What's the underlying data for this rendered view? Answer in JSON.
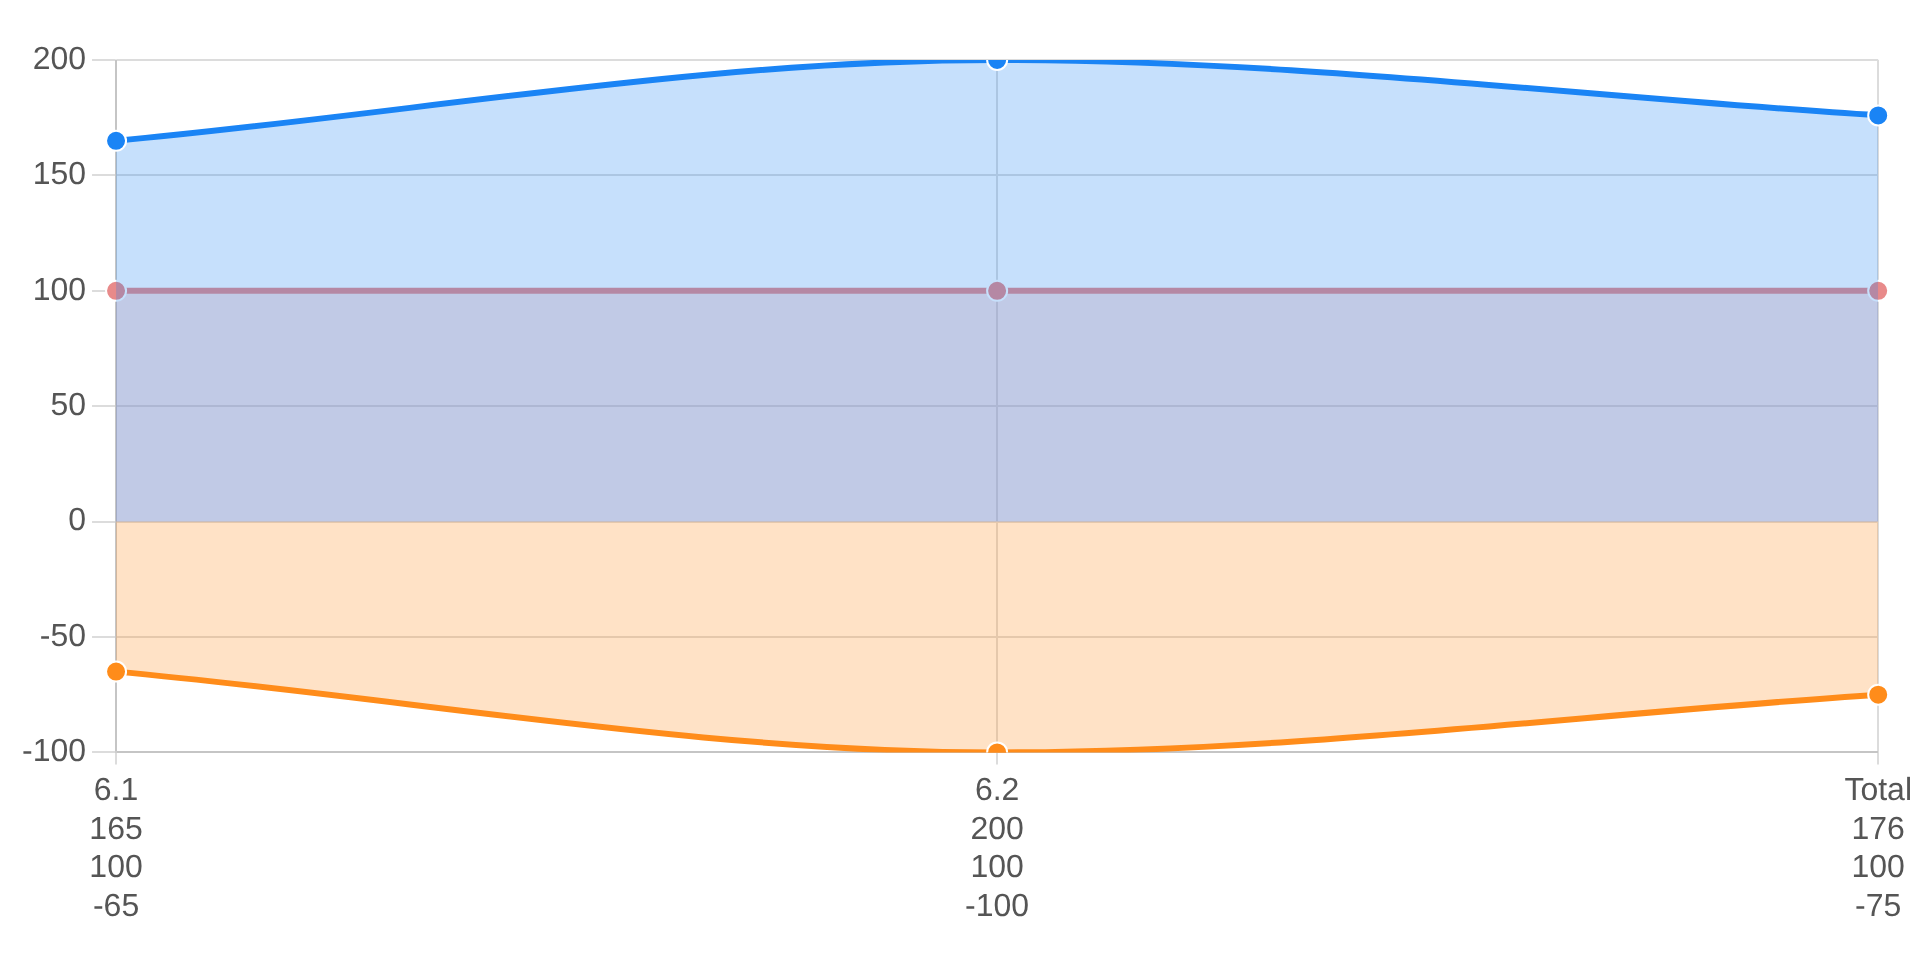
{
  "chart_data": {
    "type": "area",
    "categories": [
      "6.1",
      "6.2",
      "Total"
    ],
    "series": [
      {
        "color": "#1a84f5",
        "values": [
          165,
          200,
          176
        ]
      },
      {
        "color": "#e88a8a",
        "values": [
          100,
          100,
          100
        ]
      },
      {
        "color": "#ff8c1a",
        "values": [
          -65,
          -100,
          -75
        ]
      }
    ],
    "ylim": [
      -100,
      200
    ],
    "yticks": [
      -100,
      -50,
      0,
      50,
      100,
      150,
      200
    ],
    "grid": true,
    "data_labels": true,
    "marker": "circle"
  }
}
